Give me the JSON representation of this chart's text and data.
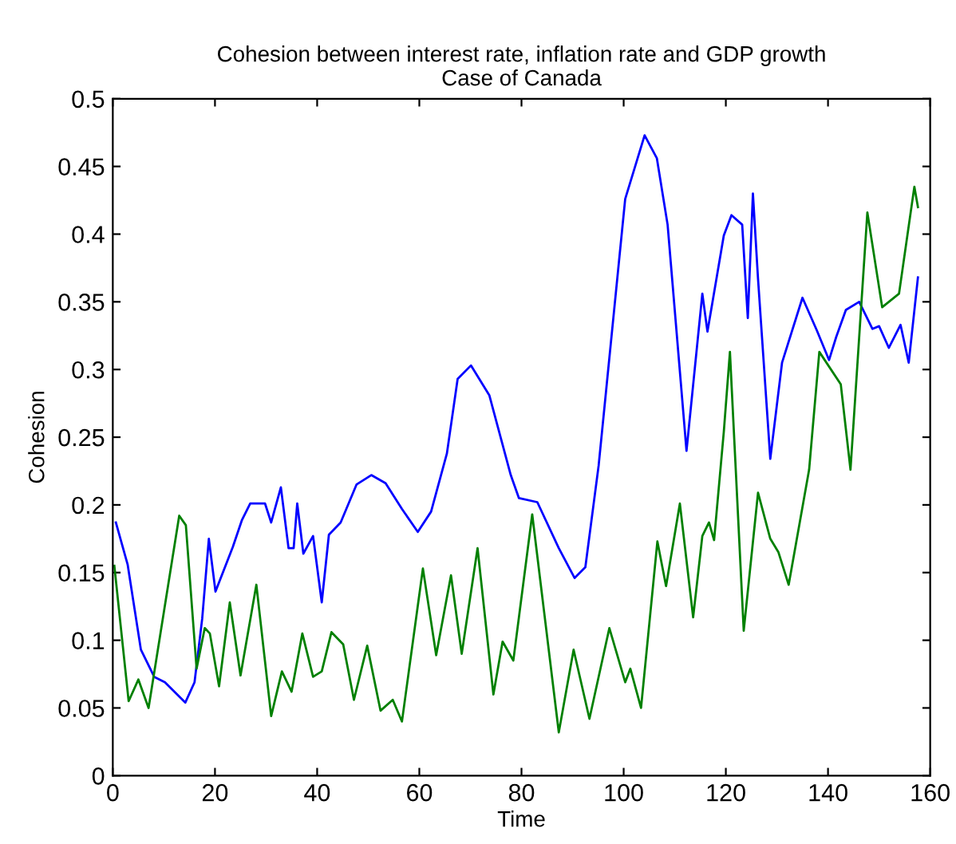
{
  "chart_data": {
    "type": "line",
    "title": "Cohesion between interest rate, inflation rate and GDP growth\nCase of Canada",
    "xlabel": "Time",
    "ylabel": "Cohesion",
    "xlim": [
      0,
      160
    ],
    "xticks": [
      0,
      20,
      40,
      60,
      80,
      100,
      120,
      140,
      160
    ],
    "ylim": [
      0,
      0.5
    ],
    "yticks": [
      0,
      0.05,
      0.1,
      0.15,
      0.2,
      0.25,
      0.3,
      0.35,
      0.4,
      0.45,
      0.5
    ],
    "grid": false,
    "marker": "none",
    "line_style": "solid",
    "series": [
      {
        "color": "#0000ff",
        "x": [
          0.6,
          2.9,
          5.5,
          8.1,
          10.2,
          14.2,
          16,
          17.5,
          18.8,
          20.1,
          23.5,
          25.3,
          26.9,
          29.8,
          31,
          32.9,
          34.4,
          35.4,
          36.1,
          37.3,
          39.2,
          40.9,
          42.3,
          44.6,
          47.7,
          50.6,
          53.4,
          56.6,
          59.7,
          62.3,
          65.4,
          67.5,
          70.1,
          73.7,
          77.9,
          79.5,
          83.1,
          87.3,
          90.4,
          92.5,
          95.1,
          100.3,
          104.1,
          106.5,
          108.6,
          112.3,
          115.4,
          116.4,
          119.6,
          121.1,
          123.2,
          124.3,
          125.3,
          126.3,
          128.7,
          131,
          135,
          137.8,
          140.2,
          141.6,
          143.5,
          146.1,
          148.7,
          150,
          151.9,
          154.2,
          155.8,
          157.6
        ],
        "values": [
          0.187,
          0.156,
          0.093,
          0.073,
          0.069,
          0.054,
          0.069,
          0.116,
          0.175,
          0.136,
          0.169,
          0.189,
          0.201,
          0.201,
          0.187,
          0.213,
          0.168,
          0.168,
          0.201,
          0.164,
          0.177,
          0.128,
          0.178,
          0.187,
          0.215,
          0.222,
          0.216,
          0.197,
          0.18,
          0.195,
          0.238,
          0.293,
          0.303,
          0.281,
          0.222,
          0.205,
          0.202,
          0.168,
          0.146,
          0.154,
          0.229,
          0.426,
          0.473,
          0.456,
          0.407,
          0.24,
          0.356,
          0.328,
          0.399,
          0.414,
          0.407,
          0.338,
          0.43,
          0.367,
          0.234,
          0.305,
          0.353,
          0.329,
          0.307,
          0.324,
          0.344,
          0.35,
          0.33,
          0.332,
          0.316,
          0.333,
          0.305,
          0.368
        ]
      },
      {
        "color": "#008000",
        "x": [
          0.3,
          3.1,
          5,
          7,
          13,
          14.3,
          16.4,
          18,
          19,
          20.8,
          22.9,
          25,
          28.1,
          31,
          33.1,
          35,
          37.1,
          39.2,
          40.9,
          42.8,
          45.1,
          47.2,
          49.8,
          52.4,
          54.8,
          56.6,
          60.7,
          63.3,
          66.2,
          68.3,
          71.4,
          74.5,
          76.3,
          78.4,
          82.1,
          87.3,
          90.2,
          93.3,
          97.2,
          100.3,
          101.3,
          103.4,
          106.6,
          108.3,
          111,
          113.6,
          115.4,
          116.7,
          117.7,
          119.6,
          120.8,
          123.5,
          126.3,
          128.7,
          130.3,
          132.3,
          136.3,
          138.3,
          142.5,
          144.4,
          147.7,
          150.6,
          153.9,
          156.9,
          157.6
        ],
        "values": [
          0.155,
          0.055,
          0.071,
          0.05,
          0.192,
          0.185,
          0.079,
          0.109,
          0.105,
          0.066,
          0.128,
          0.074,
          0.141,
          0.044,
          0.077,
          0.062,
          0.105,
          0.073,
          0.077,
          0.106,
          0.097,
          0.056,
          0.096,
          0.048,
          0.056,
          0.04,
          0.153,
          0.089,
          0.148,
          0.09,
          0.168,
          0.06,
          0.099,
          0.085,
          0.193,
          0.032,
          0.093,
          0.042,
          0.109,
          0.069,
          0.079,
          0.05,
          0.173,
          0.14,
          0.201,
          0.117,
          0.177,
          0.187,
          0.174,
          0.254,
          0.313,
          0.107,
          0.209,
          0.175,
          0.165,
          0.141,
          0.226,
          0.313,
          0.289,
          0.226,
          0.416,
          0.346,
          0.356,
          0.435,
          0.42
        ]
      }
    ]
  }
}
